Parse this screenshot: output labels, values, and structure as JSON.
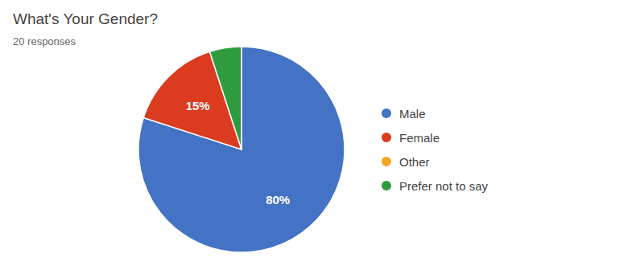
{
  "chart_data": {
    "type": "pie",
    "title": "What's Your Gender?",
    "subtitle": "20 responses",
    "categories": [
      "Male",
      "Female",
      "Other",
      "Prefer not to say"
    ],
    "values": [
      80,
      15,
      0,
      5
    ],
    "value_labels": [
      "80%",
      "15%",
      null,
      null
    ],
    "colors": [
      "#4472c4",
      "#db3b1f",
      "#f5a623",
      "#2e9b3e"
    ],
    "data_labels": true,
    "legend": "right"
  }
}
